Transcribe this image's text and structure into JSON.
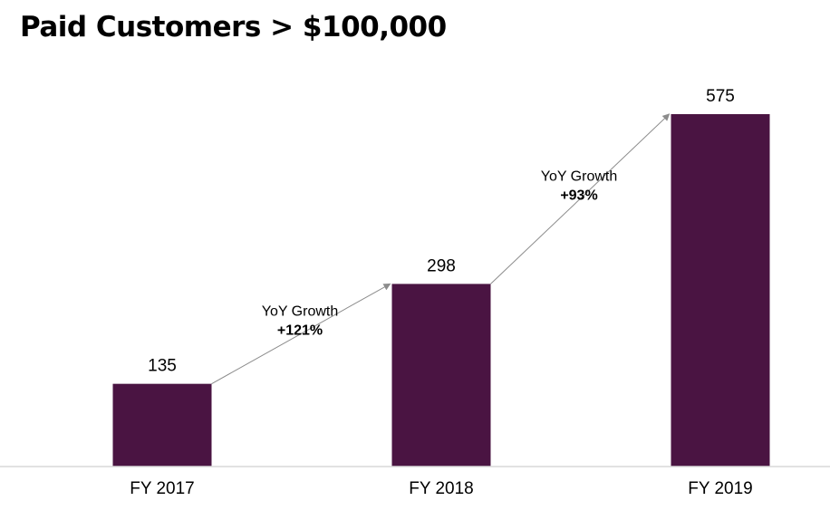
{
  "chart_data": {
    "type": "bar",
    "title": "Paid Customers > $100,000",
    "categories": [
      "FY 2017",
      "FY 2018",
      "FY 2019"
    ],
    "values": [
      135,
      298,
      575
    ],
    "xlabel": "",
    "ylabel": "",
    "ylim": [
      0,
      575
    ],
    "grid": false,
    "bar_color": "#4a1442",
    "annotations": [
      {
        "from": "FY 2017",
        "to": "FY 2018",
        "label": "YoY Growth",
        "value": "+121%"
      },
      {
        "from": "FY 2018",
        "to": "FY 2019",
        "label": "YoY Growth",
        "value": "+93%"
      }
    ]
  }
}
